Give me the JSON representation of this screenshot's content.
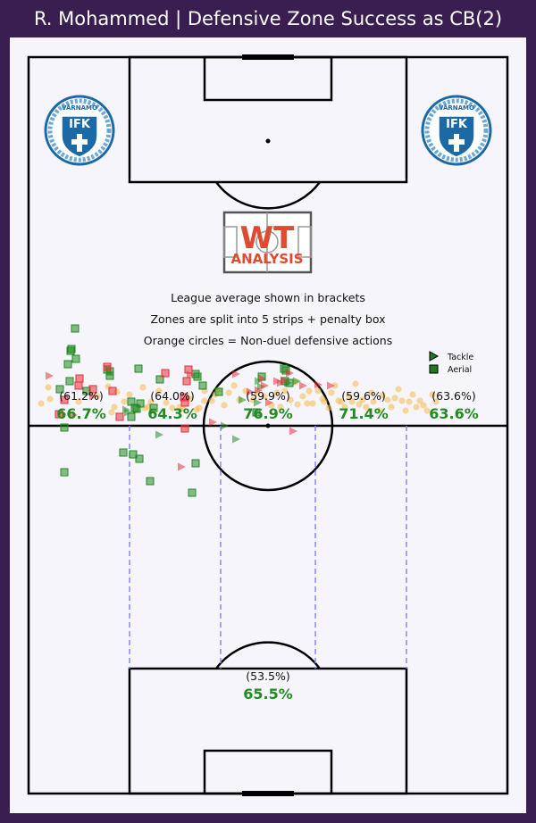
{
  "title": "R. Mohammed | Defensive Zone Success as CB(2)",
  "notes": {
    "line1": "League average shown in brackets",
    "line2": "Zones are split into 5 strips + penalty box",
    "line3": "Orange circles = Non-duel defensive actions"
  },
  "legend": [
    {
      "label": "Tackle",
      "marker": "triangle",
      "color": "#1f7a1f"
    },
    {
      "label": "Aerial",
      "marker": "square",
      "color": "#1f7a1f"
    }
  ],
  "logo": {
    "wt": "WT",
    "analysis": "ANALYSIS"
  },
  "crest": {
    "name": "VÄRNAMO",
    "abbr": "IFK"
  },
  "colors": {
    "success": "#228b22",
    "fail": "#e8303a",
    "non_duel": "#f5b94a",
    "pitch_line": "#000000",
    "zone_line": "#8888ff"
  },
  "chart_data": {
    "type": "scatter",
    "zones": [
      {
        "name": "strip-1",
        "league_avg": "(61.2%)",
        "success": "66.7%"
      },
      {
        "name": "strip-2",
        "league_avg": "(64.0%)",
        "success": "64.3%"
      },
      {
        "name": "strip-3",
        "league_avg": "(59.9%)",
        "success": "76.9%"
      },
      {
        "name": "strip-4",
        "league_avg": "(59.6%)",
        "success": "71.4%"
      },
      {
        "name": "strip-5",
        "league_avg": "(63.6%)",
        "success": "63.6%"
      },
      {
        "name": "penalty-box",
        "league_avg": "(53.5%)",
        "success": "65.5%"
      }
    ],
    "aerial_won": [
      [
        40,
        465
      ],
      [
        40,
        415
      ],
      [
        46,
        363
      ],
      [
        35,
        372
      ],
      [
        44,
        344
      ],
      [
        47,
        329
      ],
      [
        48,
        327
      ],
      [
        52,
        304
      ],
      [
        53,
        338
      ],
      [
        65,
        374
      ],
      [
        88,
        350
      ],
      [
        91,
        357
      ],
      [
        91,
        352
      ],
      [
        106,
        443
      ],
      [
        115,
        386
      ],
      [
        115,
        403
      ],
      [
        119,
        393
      ],
      [
        121,
        394
      ],
      [
        117,
        445
      ],
      [
        124,
        450
      ],
      [
        123,
        349
      ],
      [
        125,
        388
      ],
      [
        136,
        475
      ],
      [
        140,
        393
      ],
      [
        147,
        361
      ],
      [
        183,
        488
      ],
      [
        187,
        455
      ],
      [
        187,
        355
      ],
      [
        189,
        358
      ],
      [
        195,
        368
      ],
      [
        213,
        375
      ],
      [
        255,
        398
      ],
      [
        261,
        358
      ],
      [
        286,
        349
      ],
      [
        288,
        351
      ],
      [
        287,
        363
      ],
      [
        292,
        365
      ]
    ],
    "aerial_lost": [
      [
        34,
        400
      ],
      [
        40,
        384
      ],
      [
        56,
        368
      ],
      [
        57,
        360
      ],
      [
        72,
        372
      ],
      [
        88,
        347
      ],
      [
        94,
        374
      ],
      [
        102,
        403
      ],
      [
        153,
        354
      ],
      [
        174,
        381
      ],
      [
        175,
        416
      ],
      [
        175,
        387
      ],
      [
        177,
        363
      ],
      [
        179,
        350
      ]
    ],
    "tackle_won": [
      [
        109,
        395
      ],
      [
        111,
        398
      ],
      [
        146,
        423
      ],
      [
        219,
        413
      ],
      [
        232,
        428
      ],
      [
        239,
        384
      ],
      [
        256,
        387
      ],
      [
        257,
        363
      ],
      [
        260,
        369
      ],
      [
        290,
        365
      ],
      [
        300,
        363
      ]
    ],
    "tackle_lost": [
      [
        23,
        357
      ],
      [
        50,
        401
      ],
      [
        72,
        380
      ],
      [
        171,
        459
      ],
      [
        181,
        356
      ],
      [
        206,
        409
      ],
      [
        232,
        355
      ],
      [
        248,
        375
      ],
      [
        257,
        373
      ],
      [
        261,
        360
      ],
      [
        264,
        368
      ],
      [
        278,
        363
      ],
      [
        282,
        365
      ],
      [
        286,
        362
      ],
      [
        292,
        354
      ],
      [
        269,
        387
      ],
      [
        296,
        419
      ],
      [
        307,
        368
      ],
      [
        324,
        367
      ],
      [
        338,
        368
      ]
    ],
    "non_duel": [
      [
        14,
        388
      ],
      [
        22,
        370
      ],
      [
        24,
        383
      ],
      [
        56,
        386
      ],
      [
        77,
        380
      ],
      [
        89,
        369
      ],
      [
        96,
        392
      ],
      [
        93,
        398
      ],
      [
        99,
        375
      ],
      [
        107,
        386
      ],
      [
        113,
        378
      ],
      [
        128,
        370
      ],
      [
        134,
        392
      ],
      [
        130,
        393
      ],
      [
        137,
        386
      ],
      [
        146,
        374
      ],
      [
        154,
        387
      ],
      [
        161,
        393
      ],
      [
        169,
        392
      ],
      [
        173,
        394
      ],
      [
        181,
        383
      ],
      [
        188,
        395
      ],
      [
        191,
        393
      ],
      [
        197,
        385
      ],
      [
        197,
        374
      ],
      [
        205,
        385
      ],
      [
        209,
        378
      ],
      [
        213,
        373
      ],
      [
        219,
        390
      ],
      [
        224,
        376
      ],
      [
        230,
        368
      ],
      [
        236,
        384
      ],
      [
        243,
        374
      ],
      [
        251,
        384
      ],
      [
        256,
        376
      ],
      [
        264,
        380
      ],
      [
        272,
        390
      ],
      [
        278,
        376
      ],
      [
        282,
        392
      ],
      [
        287,
        374
      ],
      [
        293,
        384
      ],
      [
        299,
        364
      ],
      [
        301,
        389
      ],
      [
        307,
        380
      ],
      [
        312,
        388
      ],
      [
        314,
        374
      ],
      [
        318,
        388
      ],
      [
        324,
        374
      ],
      [
        329,
        383
      ],
      [
        331,
        386
      ],
      [
        336,
        393
      ],
      [
        339,
        376
      ],
      [
        343,
        368
      ],
      [
        347,
        385
      ],
      [
        350,
        386
      ],
      [
        354,
        392
      ],
      [
        359,
        380
      ],
      [
        362,
        386
      ],
      [
        366,
        366
      ],
      [
        370,
        389
      ],
      [
        374,
        384
      ],
      [
        378,
        392
      ],
      [
        384,
        376
      ],
      [
        386,
        386
      ],
      [
        392,
        396
      ],
      [
        396,
        379
      ],
      [
        402,
        384
      ],
      [
        406,
        392
      ],
      [
        410,
        382
      ],
      [
        414,
        372
      ],
      [
        418,
        385
      ],
      [
        422,
        396
      ],
      [
        426,
        386
      ],
      [
        430,
        378
      ],
      [
        434,
        392
      ],
      [
        438,
        385
      ],
      [
        442,
        390
      ],
      [
        446,
        396
      ],
      [
        452,
        378
      ],
      [
        456,
        386
      ]
    ]
  }
}
